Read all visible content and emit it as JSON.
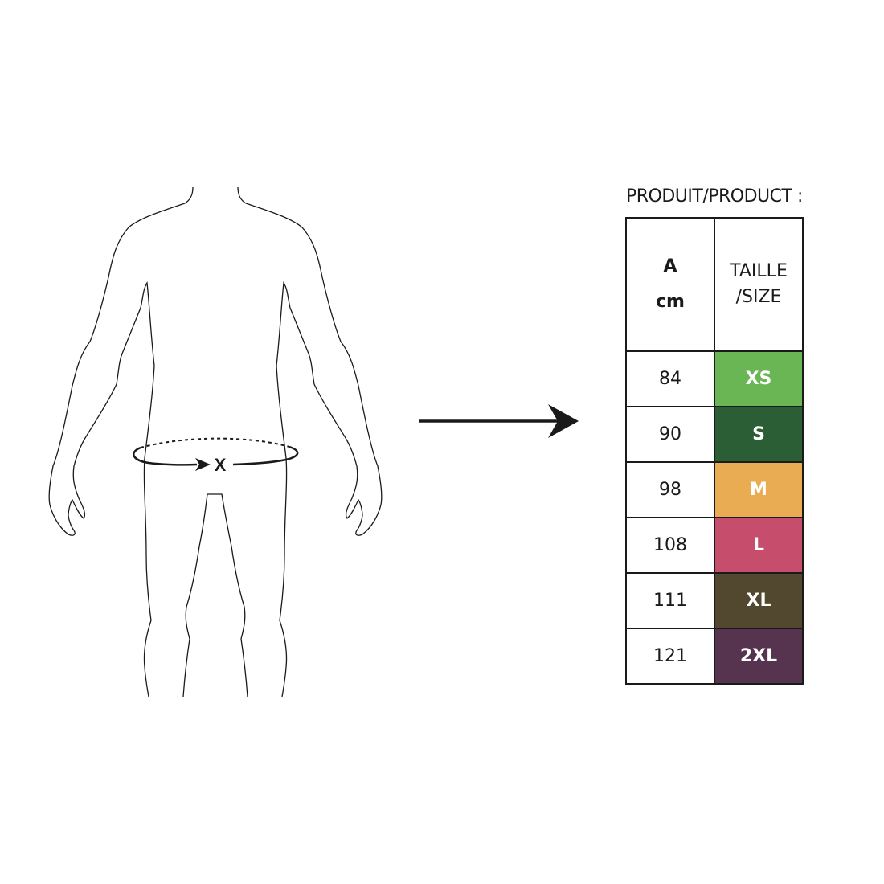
{
  "figure": {
    "measure_label": "X"
  },
  "table": {
    "title": "PRODUIT/PRODUCT :",
    "col1_header_line1": "A",
    "col1_header_line2": "cm",
    "col2_header_line1": "TAILLE",
    "col2_header_line2": "/SIZE",
    "rows": [
      {
        "cm": "84",
        "size": "XS",
        "color": "#6ab655"
      },
      {
        "cm": "90",
        "size": "S",
        "color": "#2b5e34"
      },
      {
        "cm": "98",
        "size": "M",
        "color": "#e9ac52"
      },
      {
        "cm": "108",
        "size": "L",
        "color": "#c64d6c"
      },
      {
        "cm": "111",
        "size": "XL",
        "color": "#52472f"
      },
      {
        "cm": "121",
        "size": "2XL",
        "color": "#56334e"
      }
    ]
  }
}
